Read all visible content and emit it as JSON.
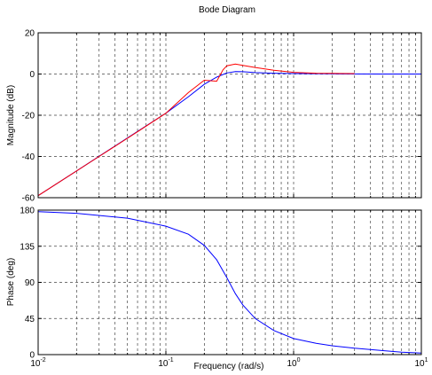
{
  "chart_data": {
    "type": "line",
    "title": "Bode Diagram",
    "xlabel": "Frequency  (rad/s)",
    "x_scale": "log",
    "xlim": [
      0.01,
      10
    ],
    "x_ticks": [
      {
        "value": 0.01,
        "base": "10",
        "exp": "-2"
      },
      {
        "value": 0.1,
        "base": "10",
        "exp": "-1"
      },
      {
        "value": 1,
        "base": "10",
        "exp": "0"
      },
      {
        "value": 10,
        "base": "10",
        "exp": "1"
      }
    ],
    "grid": true,
    "subplots": [
      {
        "id": "magnitude",
        "ylabel": "Magnitude (dB)",
        "ylim": [
          -60,
          20
        ],
        "yticks": [
          20,
          0,
          -20,
          -40,
          -60
        ],
        "series": [
          {
            "color": "#0000ff",
            "x": [
              0.01,
              0.02,
              0.05,
              0.1,
              0.15,
              0.2,
              0.25,
              0.3,
              0.35,
              0.4,
              0.5,
              0.7,
              1,
              2,
              5,
              10
            ],
            "y": [
              -59,
              -47,
              -31,
              -19,
              -11,
              -5,
              -1.5,
              0.5,
              1.2,
              1.1,
              0.7,
              0.4,
              0.2,
              0.1,
              0,
              0
            ]
          },
          {
            "color": "#ff0000",
            "x": [
              0.01,
              0.03,
              0.06,
              0.1,
              0.15,
              0.2,
              0.25,
              0.28,
              0.3,
              0.35,
              0.4,
              0.5,
              0.7,
              1,
              1.5,
              2,
              3
            ],
            "y": [
              -59,
              -40,
              -28,
              -19,
              -9,
              -3,
              -3.5,
              2,
              4,
              4.8,
              4.2,
              3.2,
              1.8,
              0.8,
              0.4,
              0.3,
              0.2
            ]
          }
        ]
      },
      {
        "id": "phase",
        "ylabel": "Phase (deg)",
        "ylim": [
          0,
          180
        ],
        "yticks": [
          180,
          135,
          90,
          45,
          0
        ],
        "series": [
          {
            "color": "#0000ff",
            "x": [
              0.01,
              0.02,
              0.05,
              0.1,
              0.15,
              0.2,
              0.25,
              0.3,
              0.35,
              0.4,
              0.5,
              0.7,
              1,
              1.5,
              2,
              3,
              5,
              7,
              10
            ],
            "y": [
              178,
              176,
              170,
              160,
              150,
              136,
              118,
              96,
              76,
              62,
              45,
              30,
              20,
              14,
              11,
              8,
              5,
              3,
              2
            ]
          }
        ]
      }
    ]
  }
}
